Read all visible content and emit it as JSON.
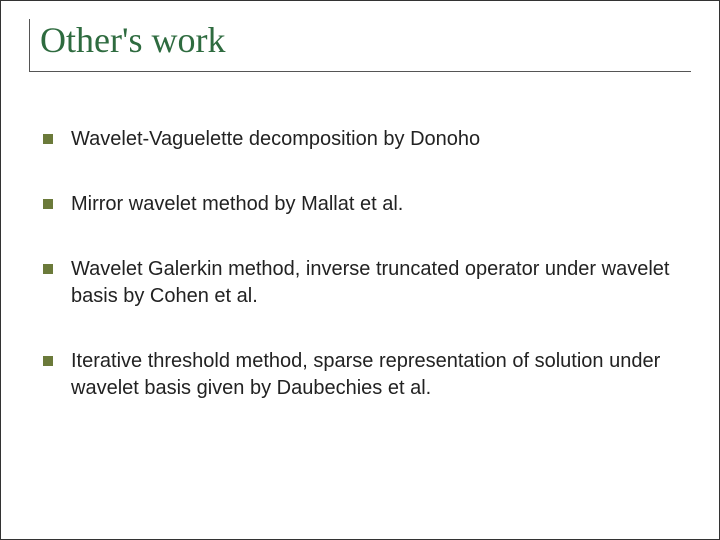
{
  "slide": {
    "title": "Other's work",
    "title_color": "#2e6b3f",
    "title_fontsize": 36,
    "title_font_family": "Georgia, serif",
    "rule_color": "#555555",
    "bullet_marker_color": "#6b7a3a",
    "bullet_marker_size": 10,
    "body_fontsize": 20,
    "body_color": "#222222",
    "background_color": "#ffffff",
    "bullets": [
      {
        "text": "Wavelet-Vaguelette decomposition by Donoho"
      },
      {
        "text": " Mirror wavelet method by Mallat et al."
      },
      {
        "text": "Wavelet Galerkin method, inverse truncated operator under wavelet basis by Cohen et al."
      },
      {
        "text": "Iterative threshold method, sparse representation of solution under wavelet basis given by Daubechies et al."
      }
    ]
  }
}
